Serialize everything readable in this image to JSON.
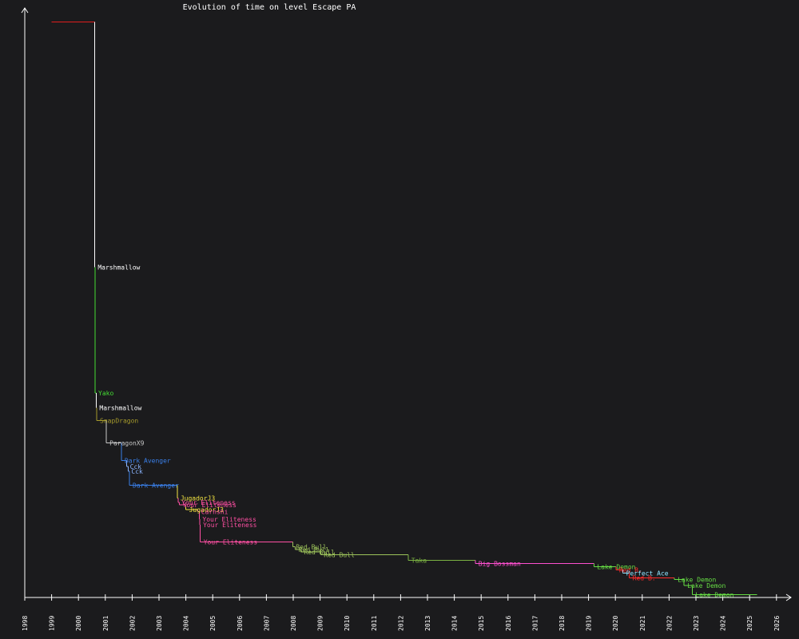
{
  "chart_data": {
    "type": "line",
    "step": true,
    "title": "Evolution of time on level Escape PA",
    "xlabel": "",
    "ylabel": "",
    "grid": false,
    "xlim": [
      1998,
      2026.6
    ],
    "ylim": [
      0,
      1
    ],
    "y_note": "relative time (axis has no tick labels)",
    "x_ticks": [
      "1998",
      "1999",
      "2000",
      "2001",
      "2002",
      "2003",
      "2004",
      "2005",
      "2006",
      "2007",
      "2008",
      "2009",
      "2010",
      "2011",
      "2012",
      "2013",
      "2014",
      "2015",
      "2016",
      "2017",
      "2018",
      "2019",
      "2020",
      "2021",
      "2022",
      "2023",
      "2024",
      "2025",
      "2026"
    ],
    "records": [
      {
        "player": "",
        "date": 1999.0,
        "value": 0.9765,
        "color": "#e01e1e"
      },
      {
        "player": "Marshmallow",
        "date": 2000.6,
        "value": 0.56,
        "color": "#ffffff"
      },
      {
        "player": "Yako",
        "date": 2000.62,
        "value": 0.347,
        "color": "#44dd33"
      },
      {
        "player": "Marshmallow",
        "date": 2000.66,
        "value": 0.322,
        "color": "#ffffff"
      },
      {
        "player": "SnapDragon",
        "date": 2000.68,
        "value": 0.3003,
        "color": "#a59a2c"
      },
      {
        "player": "ParagonX9",
        "date": 2001.04,
        "value": 0.262,
        "color": "#c8c8c8"
      },
      {
        "player": "Dark Avenger",
        "date": 2001.6,
        "value": 0.2325,
        "color": "#3a7fe8"
      },
      {
        "player": "Cck",
        "date": 2001.8,
        "value": 0.2225,
        "color": "#8ab4ff"
      },
      {
        "player": "Cck",
        "date": 2001.85,
        "value": 0.2138,
        "color": "#8ab4ff"
      },
      {
        "player": "Dark Avenger",
        "date": 2001.9,
        "value": 0.1906,
        "color": "#3a7fe8"
      },
      {
        "player": "JugadorJ3",
        "date": 2003.68,
        "value": 0.1688,
        "color": "#f5e642"
      },
      {
        "player": "Your Eliteness",
        "date": 2003.72,
        "value": 0.1613,
        "color": "#ff4fa3"
      },
      {
        "player": "Your Eliteness",
        "date": 2003.76,
        "value": 0.1569,
        "color": "#ff4fa3"
      },
      {
        "player": "",
        "date": 2004.0,
        "value": 0.1538,
        "color": "#ff4fa3"
      },
      {
        "player": "JugadorJ3",
        "date": 2004.0,
        "value": 0.1488,
        "color": "#f5e642"
      },
      {
        "player": "Carnshi",
        "date": 2004.45,
        "value": 0.1456,
        "color": "#ff4fa3"
      },
      {
        "player": "Your Eliteness",
        "date": 2004.5,
        "value": 0.1325,
        "color": "#ff4fa3"
      },
      {
        "player": "Your Eliteness",
        "date": 2004.52,
        "value": 0.1231,
        "color": "#ff4fa3"
      },
      {
        "player": "Your Eliteness",
        "date": 2004.54,
        "value": 0.0944,
        "color": "#ff4fa3"
      },
      {
        "player": "Red Bull",
        "date": 2007.98,
        "value": 0.0863,
        "color": "#9cc25a"
      },
      {
        "player": "Red Bull",
        "date": 2008.08,
        "value": 0.0813,
        "color": "#9cc25a"
      },
      {
        "player": "Red Bull",
        "date": 2008.28,
        "value": 0.0775,
        "color": "#9cc25a"
      },
      {
        "player": "Red Bull",
        "date": 2009.02,
        "value": 0.0725,
        "color": "#9cc25a"
      },
      {
        "player": "Taka",
        "date": 2012.28,
        "value": 0.0632,
        "color": "#7cb342"
      },
      {
        "player": "Big Bossman",
        "date": 2014.78,
        "value": 0.0575,
        "color": "#ff4fd0"
      },
      {
        "player": "Lake Demon",
        "date": 2019.2,
        "value": 0.0525,
        "color": "#66dd44"
      },
      {
        "player": "Red B.",
        "date": 2020.02,
        "value": 0.0469,
        "color": "#ff2b2b"
      },
      {
        "player": "Perfect Ace",
        "date": 2020.28,
        "value": 0.0413,
        "color": "#8ee3ff"
      },
      {
        "player": "Red B.",
        "date": 2020.52,
        "value": 0.0331,
        "color": "#ff2b2b"
      },
      {
        "player": "Lake Demon",
        "date": 2022.2,
        "value": 0.0306,
        "color": "#66dd44"
      },
      {
        "player": "Lake Demon",
        "date": 2022.56,
        "value": 0.0206,
        "color": "#66dd44"
      },
      {
        "player": "Lake Demon",
        "date": 2022.86,
        "value": 0.005,
        "color": "#66dd44"
      }
    ],
    "end_date": 2025.28
  }
}
